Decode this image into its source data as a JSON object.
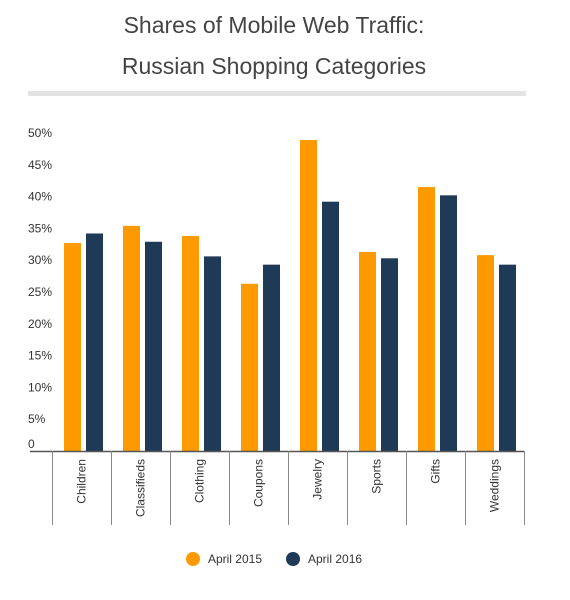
{
  "title_line1": "Shares of Mobile Web Traffic:",
  "title_line2": "Russian Shopping Categories",
  "colors": {
    "april_2015": "#FF9900",
    "april_2016": "#1F3A56",
    "axis": "#555555",
    "text": "#444444",
    "rule": "#e3e3e3"
  },
  "legend": [
    {
      "label": "April 2015",
      "color": "#FF9900"
    },
    {
      "label": "April 2016",
      "color": "#1F3A56"
    }
  ],
  "chart_data": {
    "type": "bar",
    "categories": [
      "Children",
      "Classifieds",
      "Clothing",
      "Coupons",
      "Jewelry",
      "Sports",
      "Gifts",
      "Weddings"
    ],
    "series": [
      {
        "name": "April 2015",
        "values": [
          32.7,
          35.4,
          33.8,
          26.3,
          48.9,
          31.3,
          41.5,
          30.8
        ]
      },
      {
        "name": "April 2016",
        "values": [
          34.2,
          32.9,
          30.6,
          29.3,
          39.2,
          30.3,
          40.2,
          29.3
        ]
      }
    ],
    "yticks": [
      "0",
      "5%",
      "10%",
      "15%",
      "20%",
      "25%",
      "30%",
      "35%",
      "40%",
      "45%",
      "50%"
    ],
    "ylim": [
      0,
      50
    ],
    "title": "Shares of Mobile Web Traffic: Russian Shopping Categories",
    "xlabel": "",
    "ylabel": "",
    "legend_position": "bottom",
    "grid": false
  }
}
